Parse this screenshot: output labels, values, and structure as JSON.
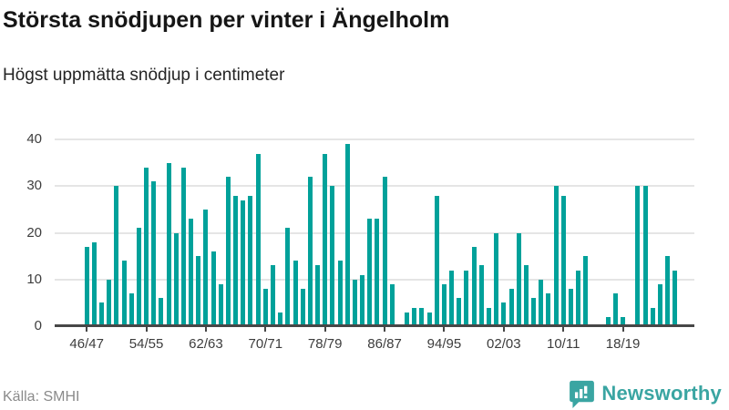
{
  "header": {
    "title": "Största snödjupen per vinter i Ängelholm",
    "subtitle": "Högst uppmätta snödjup i centimeter"
  },
  "footer": {
    "source": "Källa: SMHI",
    "brand": "Newsworthy",
    "brand_icon": "newsworthy-speech-bubble-barchart-icon"
  },
  "colors": {
    "bar": "#00a19a",
    "grid": "#e5e5e5",
    "axis": "#474747",
    "tick_label": "#3d3d3d",
    "title": "#161616",
    "source": "#8a8a8a",
    "brand": "#3aa5a2"
  },
  "chart_data": {
    "type": "bar",
    "title": "Största snödjupen per vinter i Ängelholm",
    "subtitle": "Högst uppmätta snödjup i centimeter",
    "unit": "cm",
    "x": [
      "46/47",
      "47/48",
      "48/49",
      "49/50",
      "50/51",
      "51/52",
      "52/53",
      "53/54",
      "54/55",
      "55/56",
      "56/57",
      "57/58",
      "58/59",
      "59/60",
      "60/61",
      "61/62",
      "62/63",
      "63/64",
      "64/65",
      "65/66",
      "66/67",
      "67/68",
      "68/69",
      "69/70",
      "70/71",
      "71/72",
      "72/73",
      "73/74",
      "74/75",
      "75/76",
      "76/77",
      "77/78",
      "78/79",
      "79/80",
      "80/81",
      "81/82",
      "82/83",
      "83/84",
      "84/85",
      "85/86",
      "86/87",
      "87/88",
      "88/89",
      "89/90",
      "90/91",
      "91/92",
      "92/93",
      "93/94",
      "94/95",
      "95/96",
      "96/97",
      "97/98",
      "98/99",
      "99/00",
      "00/01",
      "01/02",
      "02/03",
      "03/04",
      "04/05",
      "05/06",
      "06/07",
      "07/08",
      "08/09",
      "09/10",
      "10/11",
      "11/12",
      "12/13",
      "13/14",
      "14/15",
      "15/16",
      "16/17",
      "17/18",
      "18/19",
      "19/20",
      "20/21",
      "21/22",
      "22/23",
      "23/24",
      "24/25",
      "25/26"
    ],
    "values": [
      17,
      18,
      5,
      10,
      30,
      14,
      7,
      21,
      34,
      31,
      6,
      35,
      20,
      34,
      23,
      15,
      25,
      16,
      9,
      32,
      28,
      27,
      28,
      37,
      8,
      13,
      3,
      21,
      14,
      8,
      32,
      13,
      37,
      30,
      14,
      39,
      10,
      11,
      23,
      23,
      32,
      9,
      0,
      3,
      4,
      4,
      3,
      28,
      9,
      12,
      6,
      12,
      17,
      13,
      4,
      20,
      5,
      8,
      20,
      13,
      6,
      10,
      7,
      30,
      28,
      8,
      12,
      15,
      0,
      0,
      2,
      7,
      2,
      0,
      30,
      30,
      4,
      9,
      15,
      12
    ],
    "x_tick_labels": [
      "46/47",
      "54/55",
      "62/63",
      "70/71",
      "78/79",
      "86/87",
      "94/95",
      "02/03",
      "10/11",
      "18/19"
    ],
    "x_tick_indices": [
      0,
      8,
      16,
      24,
      32,
      40,
      48,
      56,
      64,
      72
    ],
    "yticks": [
      0,
      10,
      20,
      30,
      40
    ],
    "ylim": [
      0,
      40
    ],
    "xlabel": "",
    "ylabel": "",
    "grid": "horizontal",
    "legend": "none"
  }
}
